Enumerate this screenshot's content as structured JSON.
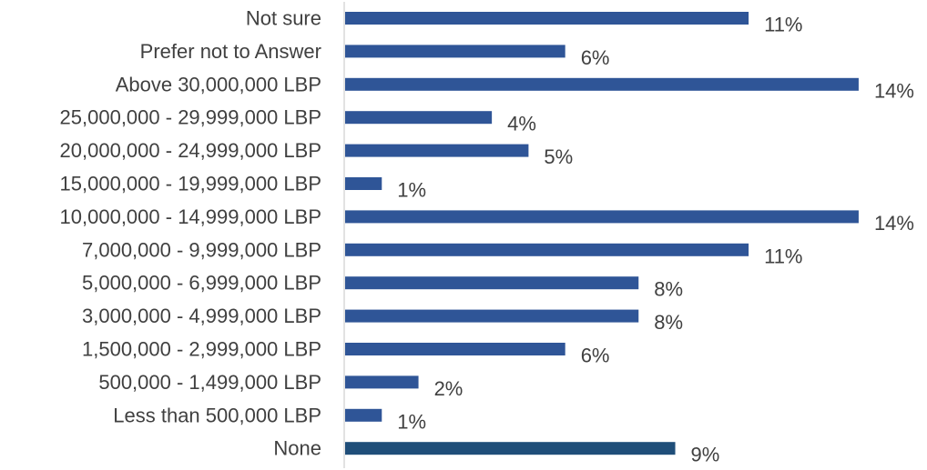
{
  "chart_data": {
    "type": "bar",
    "orientation": "horizontal",
    "categories": [
      "Not sure",
      "Prefer not to Answer",
      "Above 30,000,000 LBP",
      "25,000,000 - 29,999,000 LBP",
      "20,000,000 - 24,999,000 LBP",
      "15,000,000 - 19,999,000 LBP",
      "10,000,000 - 14,999,000 LBP",
      "7,000,000 - 9,999,000 LBP",
      "5,000,000 - 6,999,000 LBP",
      "3,000,000 - 4,999,000 LBP",
      "1,500,000 - 2,999,000 LBP",
      "500,000 - 1,499,000 LBP",
      "Less than 500,000 LBP",
      "None"
    ],
    "values": [
      11,
      6,
      14,
      4,
      5,
      1,
      14,
      11,
      8,
      8,
      6,
      2,
      1,
      9
    ],
    "data_labels": [
      "11%",
      "6%",
      "14%",
      "4%",
      "5%",
      "1%",
      "14%",
      "11%",
      "8%",
      "8%",
      "6%",
      "2%",
      "1%",
      "9%"
    ],
    "value_unit": "%",
    "xlim": [
      0,
      14.2
    ],
    "title": "",
    "xlabel": "",
    "ylabel": "",
    "grid": false,
    "legend": "none",
    "colors": {
      "bar": "#2F5597",
      "bar_last": "#1F4E79",
      "axis": "#D9D9D9",
      "text": "#404040"
    }
  }
}
